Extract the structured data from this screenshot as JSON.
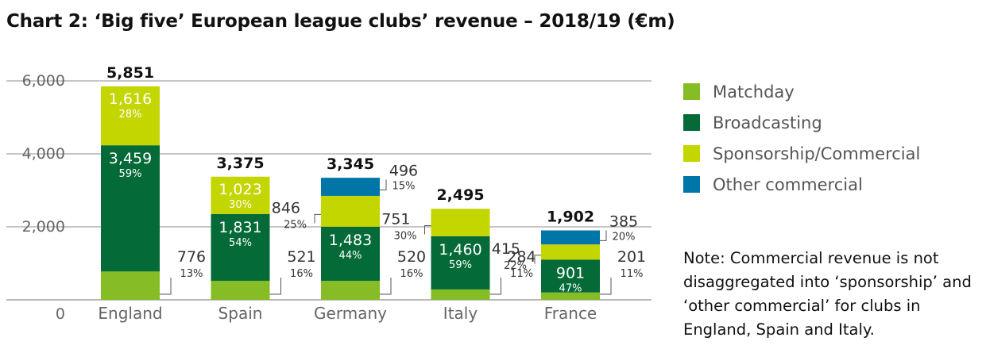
{
  "title": "Chart 2: ‘Big five’ European league clubs’ revenue – 2018/19 (€m)",
  "note": "Note: Commercial revenue is not disaggregated into ‘sponsorship’ and ‘other commercial’ for clubs in England, Spain and Italy.",
  "colors": {
    "matchday": "#86bc25",
    "broadcasting": "#046a38",
    "sponsorship": "#c4d600",
    "other": "#0076a8",
    "grid": "#8c8c8c",
    "axis_text": "#666666"
  },
  "chart_data": {
    "type": "bar",
    "stacked": true,
    "title": "Chart 2: ‘Big five’ European league clubs’ revenue – 2018/19 (€m)",
    "xlabel": "",
    "ylabel": "",
    "ylim": [
      0,
      6500
    ],
    "yticks": [
      0,
      2000,
      4000,
      6000
    ],
    "ytick_labels": [
      "0",
      "2,000",
      "4,000",
      "6,000"
    ],
    "grid": true,
    "legend_position": "right",
    "categories": [
      "England",
      "Spain",
      "Germany",
      "Italy",
      "France"
    ],
    "totals": [
      5851,
      3375,
      3345,
      2495,
      1902
    ],
    "total_labels": [
      "5,851",
      "3,375",
      "3,345",
      "2,495",
      "1,902"
    ],
    "series": [
      {
        "name": "Matchday",
        "key": "matchday",
        "values": [
          776,
          521,
          520,
          284,
          201
        ],
        "labels": [
          "776",
          "521",
          "520",
          "284",
          "201"
        ],
        "pcts": [
          "13%",
          "16%",
          "16%",
          "11%",
          "11%"
        ]
      },
      {
        "name": "Broadcasting",
        "key": "broadcasting",
        "values": [
          3459,
          1831,
          1483,
          1460,
          901
        ],
        "labels": [
          "3,459",
          "1,831",
          "1,483",
          "1,460",
          "901"
        ],
        "pcts": [
          "59%",
          "54%",
          "44%",
          "59%",
          "47%"
        ]
      },
      {
        "name": "Sponsorship/Commercial",
        "key": "sponsorship",
        "values": [
          1616,
          1023,
          846,
          751,
          415
        ],
        "labels": [
          "1,616",
          "1,023",
          "846",
          "751",
          "415"
        ],
        "pcts": [
          "28%",
          "30%",
          "25%",
          "30%",
          "22%"
        ]
      },
      {
        "name": "Other commercial",
        "key": "other",
        "values": [
          0,
          0,
          496,
          0,
          385
        ],
        "labels": [
          "",
          "",
          "496",
          "",
          "385"
        ],
        "pcts": [
          "",
          "",
          "15%",
          "",
          "20%"
        ]
      }
    ]
  }
}
